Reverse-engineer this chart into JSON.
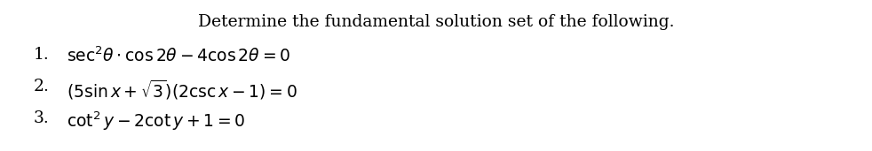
{
  "title": "Determine the fundamental solution set of the following.",
  "line1_num": "1.",
  "line1_eq": "$\\sec^2\\!\\theta \\cdot \\cos 2\\theta - 4\\cos 2\\theta = 0$",
  "line2_num": "2.",
  "line2_eq": "$(5\\sin x + \\sqrt{3})(2\\csc x - 1) = 0$",
  "line3_num": "3.",
  "line3_eq": "$\\cot^2 y - 2\\cot y + 1 = 0$",
  "bg_color": "#ffffff",
  "text_color": "#000000",
  "title_fontsize": 13.5,
  "eq_fontsize": 13.5,
  "num_fontsize": 13.5
}
